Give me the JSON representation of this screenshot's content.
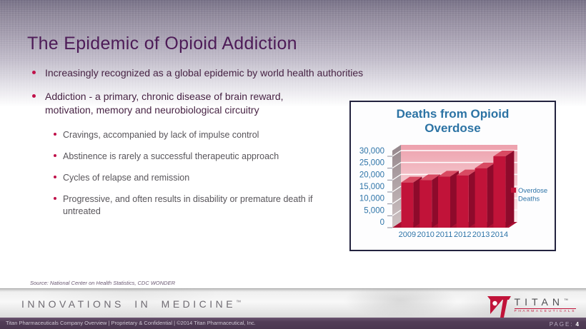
{
  "slide": {
    "title": "The Epidemic of Opioid Addiction",
    "source_note": "Source: National Center on Health Statistics, CDC WONDER"
  },
  "content": {
    "bullets": [
      "Increasingly recognized as a global epidemic by world health authorities",
      "Addiction - a primary, chronic disease of brain reward, motivation, memory and neurobiological circuitry"
    ],
    "sub_bullets": [
      "Cravings, accompanied by lack of impulse control",
      "Abstinence is rarely a successful therapeutic approach",
      "Cycles of relapse and remission",
      "Progressive, and often results in disability or premature death if untreated"
    ]
  },
  "chart_data": {
    "type": "bar",
    "style": "3d-column",
    "title": "Deaths from Opioid Overdose",
    "categories": [
      "2009",
      "2010",
      "2011",
      "2012",
      "2013",
      "2014"
    ],
    "values": [
      19000,
      20000,
      21500,
      22000,
      25000,
      30000
    ],
    "series_name": "Overdose Deaths",
    "legend_lines": [
      "Overdose",
      "Deaths"
    ],
    "legend_position": "right",
    "xlabel": "",
    "ylabel": "",
    "ylim": [
      0,
      30000
    ],
    "ytick_step": 5000,
    "grid": true,
    "colors": {
      "bar": "#c11339",
      "bar_side": "#8e0a2b",
      "bar_top": "#d84a62",
      "wall_top": "#eda1ad",
      "wall_bottom": "#fdf0f1",
      "side_wall_top": "#95878c",
      "side_wall_bottom": "#cfc3c4",
      "floor": "#ab0f32",
      "axis_text": "#2e74a8",
      "gridline": "#ffffff"
    }
  },
  "footer": {
    "tagline": "INNOVATIONS IN MEDICINE",
    "tagline_tm": "™",
    "logo_text": "TITAN",
    "logo_tm": "™",
    "logo_subtext": "PHARMACEUTICALS",
    "bottom_left": "Titan Pharmaceuticals Company Overview | Proprietary & Confidential | ©2014 Titan Pharmaceutical, Inc.",
    "page_label": "PAGE:",
    "page_number": "4"
  },
  "colors": {
    "title_text": "#4d1b57",
    "bullet_text": "#472344",
    "sub_bullet_text": "#58555a",
    "bullet_dot": "#c0114a",
    "chart_title": "#2c73a4",
    "chart_border": "#23233f",
    "footer_bar": "#4f3b54"
  }
}
